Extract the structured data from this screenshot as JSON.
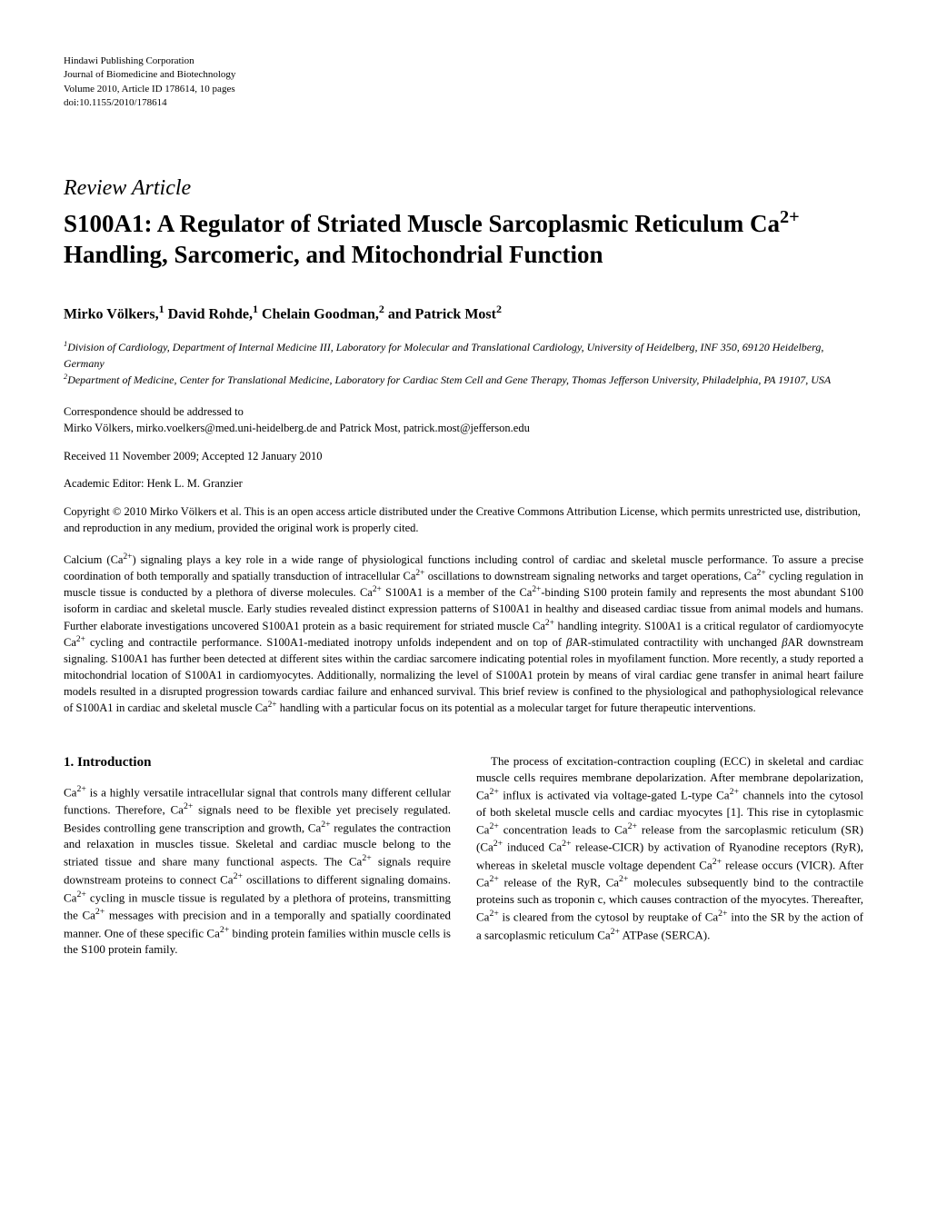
{
  "header": {
    "publisher": "Hindawi Publishing Corporation",
    "journal": "Journal of Biomedicine and Biotechnology",
    "volume_line": "Volume 2010, Article ID 178614, 10 pages",
    "doi": "doi:10.1155/2010/178614"
  },
  "article_type": "Review Article",
  "title_html": "S100A1: A Regulator of Striated Muscle Sarcoplasmic Reticulum Ca<sup>2+</sup> Handling, Sarcomeric, and Mitochondrial Function",
  "authors_html": "Mirko Völkers,<sup>1</sup> David Rohde,<sup>1</sup> Chelain Goodman,<sup>2</sup> and Patrick Most<sup>2</sup>",
  "affiliations": [
    {
      "num": "1",
      "text": "Division of Cardiology, Department of Internal Medicine III, Laboratory for Molecular and Translational Cardiology, University of Heidelberg, INF 350, 69120 Heidelberg, Germany"
    },
    {
      "num": "2",
      "text": "Department of Medicine, Center for Translational Medicine, Laboratory for Cardiac Stem Cell and Gene Therapy, Thomas Jefferson University, Philadelphia, PA 19107, USA"
    }
  ],
  "correspondence": {
    "intro": "Correspondence should be addressed to",
    "line": "Mirko Völkers, mirko.voelkers@med.uni-heidelberg.de and Patrick Most, patrick.most@jefferson.edu"
  },
  "dates": "Received 11 November 2009; Accepted 12 January 2010",
  "editor": "Academic Editor: Henk L. M. Granzier",
  "copyright": "Copyright © 2010 Mirko Völkers et al. This is an open access article distributed under the Creative Commons Attribution License, which permits unrestricted use, distribution, and reproduction in any medium, provided the original work is properly cited.",
  "abstract_html": "Calcium (Ca<sup>2+</sup>) signaling plays a key role in a wide range of physiological functions including control of cardiac and skeletal muscle performance. To assure a precise coordination of both temporally and spatially transduction of intracellular Ca<sup>2+</sup> oscillations to downstream signaling networks and target operations, Ca<sup>2+</sup> cycling regulation in muscle tissue is conducted by a plethora of diverse molecules. Ca<sup>2+</sup> S100A1 is a member of the Ca<sup>2+</sup>-binding S100 protein family and represents the most abundant S100 isoform in cardiac and skeletal muscle. Early studies revealed distinct expression patterns of S100A1 in healthy and diseased cardiac tissue from animal models and humans. Further elaborate investigations uncovered S100A1 protein as a basic requirement for striated muscle Ca<sup>2+</sup> handling integrity. S100A1 is a critical regulator of cardiomyocyte Ca<sup>2+</sup> cycling and contractile performance. S100A1-mediated inotropy unfolds independent and on top of <i>β</i>AR-stimulated contractility with unchanged <i>β</i>AR downstream signaling. S100A1 has further been detected at different sites within the cardiac sarcomere indicating potential roles in myofilament function. More recently, a study reported a mitochondrial location of S100A1 in cardiomyocytes. Additionally, normalizing the level of S100A1 protein by means of viral cardiac gene transfer in animal heart failure models resulted in a disrupted progression towards cardiac failure and enhanced survival. This brief review is confined to the physiological and pathophysiological relevance of S100A1 in cardiac and skeletal muscle Ca<sup>2+</sup> handling with a particular focus on its potential as a molecular target for future therapeutic interventions.",
  "section1": {
    "header": "1. Introduction",
    "col1_html": "Ca<sup>2+</sup> is a highly versatile intracellular signal that controls many different cellular functions. Therefore, Ca<sup>2+</sup> signals need to be flexible yet precisely regulated. Besides controlling gene transcription and growth, Ca<sup>2+</sup> regulates the contraction and relaxation in muscles tissue. Skeletal and cardiac muscle belong to the striated tissue and share many functional aspects. The Ca<sup>2+</sup> signals require downstream proteins to connect Ca<sup>2+</sup> oscillations to different signaling domains. Ca<sup>2+</sup> cycling in muscle tissue is regulated by a plethora of proteins, transmitting the Ca<sup>2+</sup> messages with precision and in a temporally and spatially coordinated manner. One of these specific Ca<sup>2+</sup> binding protein families within muscle cells is the S100 protein family.",
    "col2_html": "The process of excitation-contraction coupling (ECC) in skeletal and cardiac muscle cells requires membrane depolarization. After membrane depolarization, Ca<sup>2+</sup> influx is activated via voltage-gated L-type Ca<sup>2+</sup> channels into the cytosol of both skeletal muscle cells and cardiac myocytes [1]. This rise in cytoplasmic Ca<sup>2+</sup> concentration leads to Ca<sup>2+</sup> release from the sarcoplasmic reticulum (SR) (Ca<sup>2+</sup> induced Ca<sup>2+</sup> release-CICR) by activation of Ryanodine receptors (RyR), whereas in skeletal muscle voltage dependent Ca<sup>2+</sup> release occurs (VICR). After Ca<sup>2+</sup> release of the RyR, Ca<sup>2+</sup> molecules subsequently bind to the contractile proteins such as troponin c, which causes contraction of the myocytes. Thereafter, Ca<sup>2+</sup> is cleared from the cytosol by reuptake of Ca<sup>2+</sup> into the SR by the action of a sarcoplasmic reticulum Ca<sup>2+</sup> ATPase (SERCA)."
  }
}
